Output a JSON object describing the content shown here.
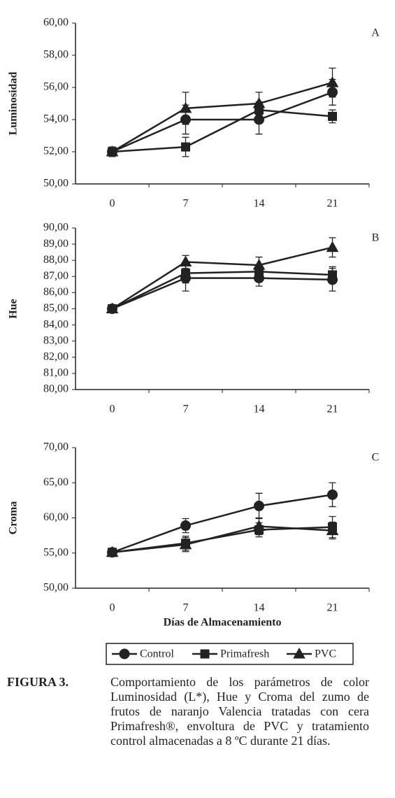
{
  "chart_data": [
    {
      "type": "line",
      "panel": "A",
      "ylabel": "Luminosidad",
      "categories": [
        "0",
        "7",
        "14",
        "21"
      ],
      "ylim": [
        50,
        60
      ],
      "yticks": [
        {
          "value": 50,
          "label": "50,00"
        },
        {
          "value": 52,
          "label": "52,00"
        },
        {
          "value": 54,
          "label": "54,00"
        },
        {
          "value": 56,
          "label": "56,00"
        },
        {
          "value": 58,
          "label": "58,00"
        },
        {
          "value": 60,
          "label": "60,00"
        }
      ],
      "series": [
        {
          "marker": "circle",
          "color": "#222222",
          "values": [
            52.0,
            54.0,
            54.0,
            55.7
          ],
          "errors": [
            0.3,
            0.9,
            0.9,
            0.8
          ]
        },
        {
          "marker": "square",
          "color": "#222222",
          "values": [
            52.0,
            52.3,
            54.6,
            54.2
          ],
          "errors": [
            0.3,
            0.6,
            0.5,
            0.4
          ]
        },
        {
          "marker": "triangle",
          "color": "#222222",
          "values": [
            52.0,
            54.7,
            55.0,
            56.3
          ],
          "errors": [
            0.3,
            1.0,
            0.7,
            0.9
          ]
        }
      ]
    },
    {
      "type": "line",
      "panel": "B",
      "ylabel": "Hue",
      "categories": [
        "0",
        "7",
        "14",
        "21"
      ],
      "ylim": [
        80,
        90
      ],
      "yticks": [
        {
          "value": 80,
          "label": "80,00"
        },
        {
          "value": 81,
          "label": "81,00"
        },
        {
          "value": 82,
          "label": "82,00"
        },
        {
          "value": 83,
          "label": "83,00"
        },
        {
          "value": 84,
          "label": "84,00"
        },
        {
          "value": 85,
          "label": "85,00"
        },
        {
          "value": 86,
          "label": "86,00"
        },
        {
          "value": 87,
          "label": "87,00"
        },
        {
          "value": 88,
          "label": "88,00"
        },
        {
          "value": 89,
          "label": "89,00"
        },
        {
          "value": 90,
          "label": "90,00"
        }
      ],
      "series": [
        {
          "marker": "circle",
          "color": "#222222",
          "values": [
            85.0,
            86.9,
            86.9,
            86.8
          ],
          "errors": [
            0.1,
            0.8,
            0.5,
            0.7
          ]
        },
        {
          "marker": "square",
          "color": "#222222",
          "values": [
            85.0,
            87.2,
            87.3,
            87.1
          ],
          "errors": [
            0.1,
            0.6,
            0.4,
            0.5
          ]
        },
        {
          "marker": "triangle",
          "color": "#222222",
          "values": [
            85.0,
            87.9,
            87.7,
            88.8
          ],
          "errors": [
            0.1,
            0.4,
            0.5,
            0.6
          ]
        }
      ]
    },
    {
      "type": "line",
      "panel": "C",
      "ylabel": "Croma",
      "xlabel": "Días de Almacenamiento",
      "categories": [
        "0",
        "7",
        "14",
        "21"
      ],
      "ylim": [
        50,
        70
      ],
      "yticks": [
        {
          "value": 50,
          "label": "50,00"
        },
        {
          "value": 55,
          "label": "55,00"
        },
        {
          "value": 60,
          "label": "60,00"
        },
        {
          "value": 65,
          "label": "65,00"
        },
        {
          "value": 70,
          "label": "70,00"
        }
      ],
      "series": [
        {
          "name": "Control",
          "marker": "circle",
          "color": "#222222",
          "values": [
            55.1,
            58.9,
            61.7,
            63.3
          ],
          "errors": [
            0.3,
            1.0,
            1.8,
            1.7
          ]
        },
        {
          "name": "Primafresh",
          "marker": "square",
          "color": "#222222",
          "values": [
            55.1,
            56.4,
            58.3,
            58.7
          ],
          "errors": [
            0.3,
            1.0,
            1.0,
            1.5
          ]
        },
        {
          "name": "PVC",
          "marker": "triangle",
          "color": "#222222",
          "values": [
            55.1,
            56.2,
            58.8,
            58.2
          ],
          "errors": [
            0.3,
            1.0,
            1.2,
            1.2
          ]
        }
      ]
    }
  ],
  "caption": {
    "label": "FIGURA 3.",
    "text": "Comportamiento de los parámetros de color Luminosidad (L*), Hue y Croma del zumo de frutos de naranjo Valencia tratadas con cera Primafresh®, envoltura de PVC y tratamiento control almacenadas a 8 ºC durante 21 días."
  }
}
